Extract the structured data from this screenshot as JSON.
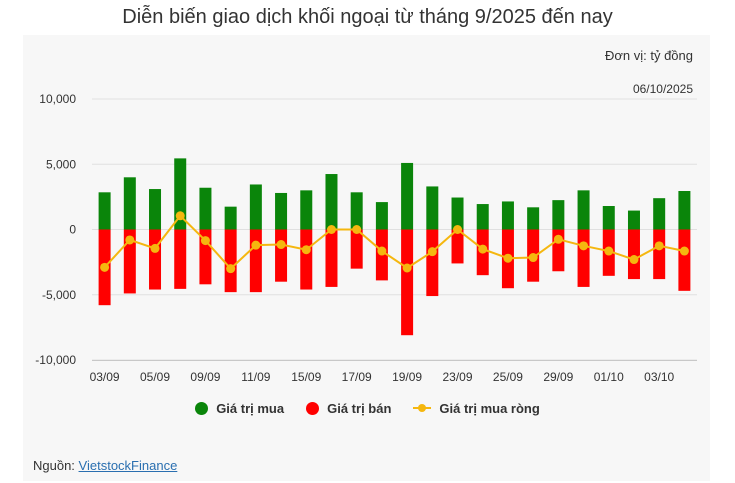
{
  "title": "Diễn biến giao dịch khối ngoại từ tháng 9/2025 đến nay",
  "unit": "Đơn vị: tỷ đồng",
  "date_note": "06/10/2025",
  "source_label": "Nguồn:",
  "source_link": "VietstockFinance",
  "legend": {
    "buy": "Giá trị mua",
    "sell": "Giá trị bán",
    "net": "Giá trị mua ròng"
  },
  "colors": {
    "buy": "#0a850a",
    "sell": "#ff0000",
    "net": "#f5b70f",
    "grid": "#e0e0e0",
    "text": "#333333"
  },
  "chart_data": {
    "type": "bar",
    "x": [
      "03/09",
      "04/09",
      "05/09",
      "08/09",
      "09/09",
      "10/09",
      "11/09",
      "12/09",
      "15/09",
      "16/09",
      "17/09",
      "18/09",
      "19/09",
      "22/09",
      "23/09",
      "24/09",
      "25/09",
      "26/09",
      "29/09",
      "30/09",
      "01/10",
      "02/10",
      "03/10",
      "06/10"
    ],
    "tick_labels": [
      "03/09",
      "05/09",
      "09/09",
      "11/09",
      "15/09",
      "17/09",
      "19/09",
      "23/09",
      "25/09",
      "29/09",
      "01/10",
      "03/10"
    ],
    "yticks": [
      10000,
      5000,
      0,
      -5000,
      -10000
    ],
    "ytick_labels": [
      "10,000",
      "5,000",
      "0",
      "-5,000",
      "-10,000"
    ],
    "ylim": [
      -10000,
      10000
    ],
    "series": [
      {
        "name": "Giá trị mua",
        "values": [
          2850,
          4000,
          3100,
          5450,
          3200,
          1750,
          3450,
          2800,
          3000,
          4250,
          2850,
          2100,
          5100,
          3300,
          2450,
          1950,
          2150,
          1700,
          2250,
          3000,
          1800,
          1450,
          2400,
          2950
        ]
      },
      {
        "name": "Giá trị bán",
        "values": [
          -5800,
          -4900,
          -4600,
          -4550,
          -4200,
          -4800,
          -4800,
          -4000,
          -4600,
          -4400,
          -3000,
          -3900,
          -8100,
          -5100,
          -2600,
          -3500,
          -4500,
          -4000,
          -3200,
          -4400,
          -3550,
          -3800,
          -3800,
          -4700
        ]
      },
      {
        "name": "Giá trị mua ròng",
        "values": [
          -2900,
          -800,
          -1450,
          1050,
          -850,
          -3000,
          -1200,
          -1150,
          -1550,
          0,
          0,
          -1650,
          -2950,
          -1700,
          0,
          -1500,
          -2200,
          -2150,
          -750,
          -1250,
          -1650,
          -2300,
          -1250,
          -1650
        ]
      }
    ]
  }
}
